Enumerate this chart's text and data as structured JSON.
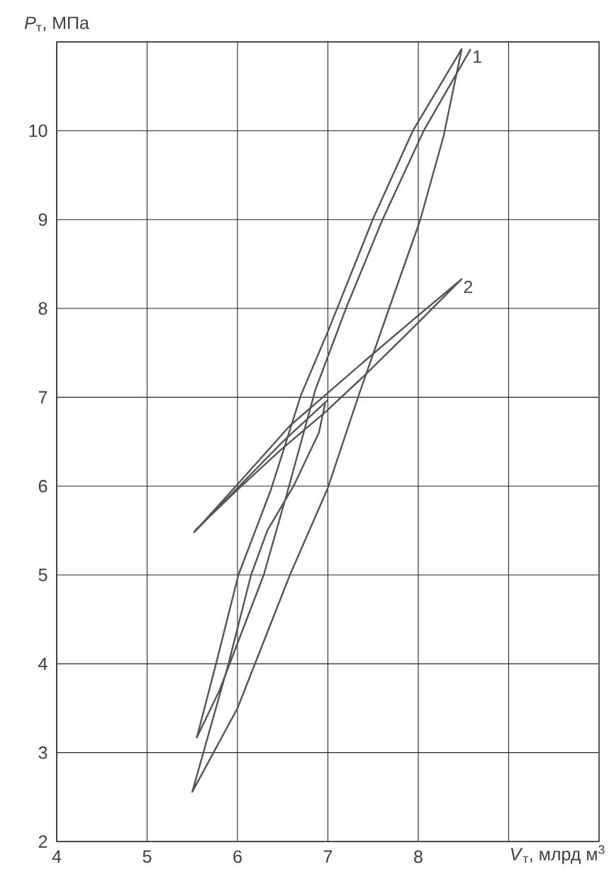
{
  "chart_data": {
    "type": "line",
    "xlabel": "*V*$_{т}$, млрд м$^{3}$",
    "ylabel": "*P*$_{т}$, МПа",
    "xlim": [
      4,
      10
    ],
    "ylim": [
      2,
      11
    ],
    "xticks": [
      4,
      5,
      6,
      7,
      8,
      {
        "value": 9,
        "label": null
      }
    ],
    "yticks": [
      2,
      3,
      4,
      5,
      6,
      7,
      8,
      9,
      10
    ],
    "grid": true,
    "legend": false,
    "marker": "none",
    "line_style": "solid",
    "series": [
      {
        "name": "1",
        "color": "#555555",
        "x": [
          6.97,
          6.9,
          6.62,
          6.33,
          6.15,
          5.9,
          5.5,
          6.0,
          6.58,
          7.0,
          7.34,
          7.77,
          8.02,
          8.28,
          8.48,
          7.94,
          7.5,
          7.0,
          6.7,
          6.56,
          6.37,
          6.01,
          5.76,
          5.55,
          5.8,
          6.29,
          6.57,
          6.86,
          7.2,
          7.6,
          8.06,
          8.58
        ],
        "values": [
          6.93,
          6.6,
          6.0,
          5.5,
          5.0,
          4.0,
          2.56,
          3.5,
          5.0,
          5.98,
          7.02,
          8.27,
          8.99,
          9.94,
          10.92,
          10.0,
          9.01,
          7.74,
          7.02,
          6.57,
          5.96,
          5.0,
          3.99,
          3.17,
          3.7,
          5.0,
          6.0,
          7.08,
          8.0,
          8.99,
          10.0,
          10.92
        ]
      },
      {
        "name": "2",
        "color": "#555555",
        "x": [
          7.0,
          6.5,
          6.0,
          5.52,
          6.0,
          6.58,
          7.0,
          7.42,
          7.94,
          8.48,
          7.94,
          7.42,
          6.98,
          6.48,
          5.98,
          5.53
        ],
        "values": [
          6.97,
          6.5,
          5.98,
          5.48,
          6.02,
          6.68,
          7.05,
          7.42,
          7.87,
          8.33,
          7.78,
          7.26,
          6.84,
          6.41,
          5.94,
          5.5
        ]
      }
    ]
  }
}
